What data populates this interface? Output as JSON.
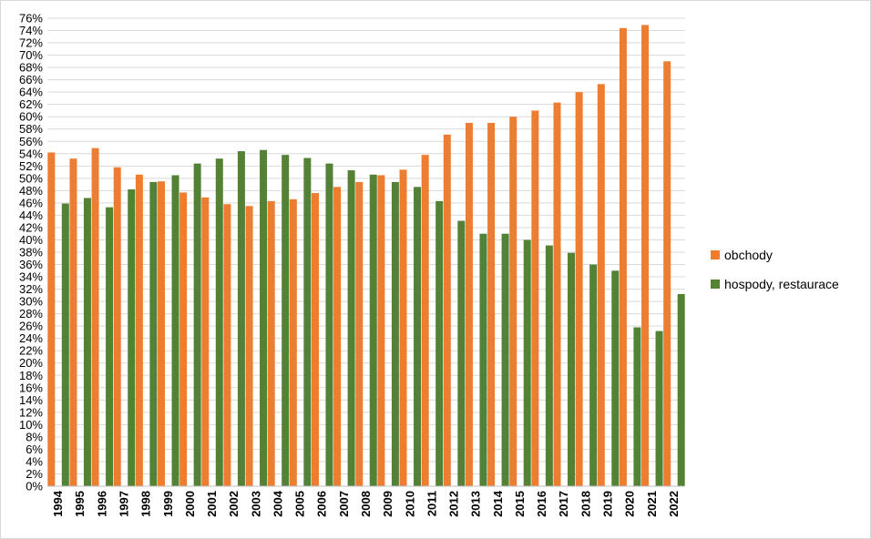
{
  "chart_data": {
    "type": "bar",
    "title": "",
    "xlabel": "",
    "ylabel": "",
    "ylim": [
      0,
      76
    ],
    "y_tick_step": 2,
    "y_tick_suffix": "%",
    "grid": true,
    "legend_position": "right",
    "categories": [
      "1994",
      "1995",
      "1996",
      "1997",
      "1998",
      "1999",
      "2000",
      "2001",
      "2002",
      "2003",
      "2004",
      "2005",
      "2006",
      "2007",
      "2008",
      "2009",
      "2010",
      "2011",
      "2012",
      "2013",
      "2014",
      "2015",
      "2016",
      "2017",
      "2018",
      "2019",
      "2020",
      "2021",
      "2022"
    ],
    "series": [
      {
        "name": "obchody",
        "color": "#ed7d31",
        "values": [
          54.2,
          53.2,
          54.9,
          51.8,
          50.6,
          49.5,
          47.7,
          46.9,
          45.8,
          45.5,
          46.3,
          46.6,
          47.6,
          48.6,
          49.4,
          50.5,
          51.4,
          53.8,
          57.1,
          59.0,
          59.0,
          60.0,
          61.0,
          62.3,
          64.0,
          65.3,
          74.4,
          74.9,
          69.0
        ]
      },
      {
        "name": "hospody, restaurace",
        "color": "#548235",
        "values": [
          45.9,
          46.8,
          45.3,
          48.2,
          49.4,
          50.5,
          52.4,
          53.2,
          54.4,
          54.6,
          53.8,
          53.3,
          52.4,
          51.3,
          50.6,
          49.4,
          48.6,
          46.3,
          43.1,
          41.0,
          41.0,
          40.0,
          39.1,
          37.9,
          36.0,
          35.0,
          25.8,
          25.2,
          31.2
        ]
      }
    ]
  }
}
